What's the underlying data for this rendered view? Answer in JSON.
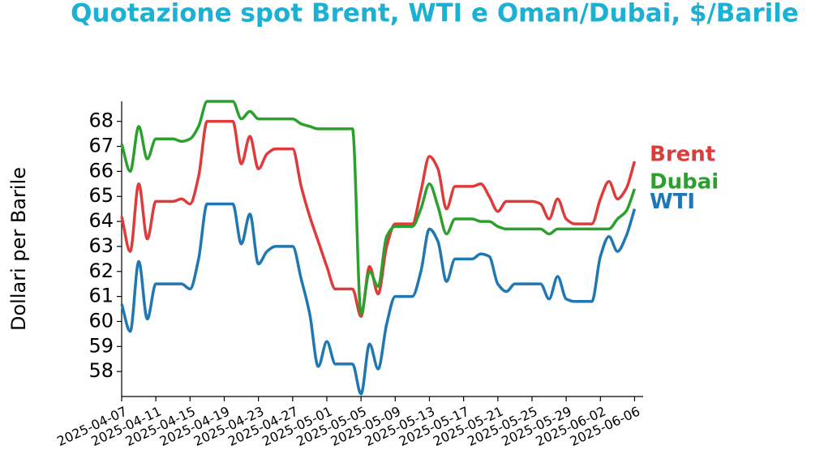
{
  "chart_data": {
    "type": "line",
    "title": "Quotazione spot Brent, WTI e Oman/Dubai, $/Barile",
    "y_label": "Dollari per Barile",
    "x": [
      "2025-04-07",
      "2025-04-08",
      "2025-04-09",
      "2025-04-10",
      "2025-04-11",
      "2025-04-12",
      "2025-04-13",
      "2025-04-14",
      "2025-04-15",
      "2025-04-16",
      "2025-04-17",
      "2025-04-18",
      "2025-04-19",
      "2025-04-20",
      "2025-04-21",
      "2025-04-22",
      "2025-04-23",
      "2025-04-24",
      "2025-04-25",
      "2025-04-26",
      "2025-04-27",
      "2025-04-28",
      "2025-04-29",
      "2025-04-30",
      "2025-05-01",
      "2025-05-02",
      "2025-05-03",
      "2025-05-04",
      "2025-05-05",
      "2025-05-06",
      "2025-05-07",
      "2025-05-08",
      "2025-05-09",
      "2025-05-10",
      "2025-05-11",
      "2025-05-12",
      "2025-05-13",
      "2025-05-14",
      "2025-05-15",
      "2025-05-16",
      "2025-05-17",
      "2025-05-18",
      "2025-05-19",
      "2025-05-20",
      "2025-05-21",
      "2025-05-22",
      "2025-05-23",
      "2025-05-24",
      "2025-05-25",
      "2025-05-26",
      "2025-05-27",
      "2025-05-28",
      "2025-05-29",
      "2025-05-30",
      "2025-05-31",
      "2025-06-01",
      "2025-06-02",
      "2025-06-03",
      "2025-06-04",
      "2025-06-05",
      "2025-06-06"
    ],
    "series": [
      {
        "name": "Brent",
        "color": "#e03b3b",
        "values": [
          64.2,
          62.8,
          65.5,
          63.3,
          64.8,
          64.8,
          64.8,
          64.9,
          64.7,
          65.8,
          68.0,
          68.0,
          68.0,
          68.0,
          66.3,
          67.4,
          66.1,
          66.7,
          66.9,
          66.9,
          66.9,
          65.4,
          64.2,
          63.2,
          62.2,
          61.3,
          61.3,
          61.3,
          60.2,
          62.2,
          61.1,
          63.0,
          63.9,
          63.9,
          63.9,
          65.2,
          66.6,
          66.1,
          64.5,
          65.4,
          65.4,
          65.4,
          65.5,
          65.0,
          64.4,
          64.8,
          64.8,
          64.8,
          64.8,
          64.7,
          64.1,
          64.9,
          64.1,
          63.9,
          63.9,
          63.9,
          64.9,
          65.6,
          64.9,
          65.3,
          66.4
        ]
      },
      {
        "name": "Dubai",
        "color": "#2ca02c",
        "values": [
          67.1,
          66.0,
          67.8,
          66.5,
          67.3,
          67.3,
          67.3,
          67.2,
          67.3,
          67.8,
          68.8,
          68.8,
          68.8,
          68.8,
          68.1,
          68.4,
          68.1,
          68.1,
          68.1,
          68.1,
          68.1,
          67.9,
          67.8,
          67.7,
          67.7,
          67.7,
          67.7,
          67.7,
          60.3,
          62.0,
          61.4,
          63.4,
          63.8,
          63.8,
          63.8,
          64.5,
          65.5,
          64.6,
          63.5,
          64.1,
          64.1,
          64.1,
          64.0,
          64.0,
          63.8,
          63.7,
          63.7,
          63.7,
          63.7,
          63.7,
          63.5,
          63.7,
          63.7,
          63.7,
          63.7,
          63.7,
          63.7,
          63.7,
          64.1,
          64.4,
          65.3
        ]
      },
      {
        "name": "WTI",
        "color": "#1f77b4",
        "values": [
          60.7,
          59.6,
          62.4,
          60.1,
          61.5,
          61.5,
          61.5,
          61.5,
          61.3,
          62.5,
          64.7,
          64.7,
          64.7,
          64.7,
          63.1,
          64.3,
          62.3,
          62.8,
          63.0,
          63.0,
          63.0,
          61.7,
          60.3,
          58.2,
          59.2,
          58.3,
          58.3,
          58.3,
          57.1,
          59.1,
          58.1,
          59.9,
          61.0,
          61.0,
          61.0,
          62.0,
          63.7,
          63.2,
          61.6,
          62.5,
          62.5,
          62.5,
          62.7,
          62.6,
          61.5,
          61.2,
          61.5,
          61.5,
          61.5,
          61.5,
          60.9,
          61.8,
          60.9,
          60.8,
          60.8,
          60.8,
          62.6,
          63.4,
          62.8,
          63.4,
          64.5
        ]
      }
    ],
    "xlim": [
      "2025-04-07",
      "2025-06-07"
    ],
    "xticks": [
      "2025-04-07",
      "2025-04-11",
      "2025-04-15",
      "2025-04-19",
      "2025-04-23",
      "2025-04-27",
      "2025-05-01",
      "2025-05-05",
      "2025-05-09",
      "2025-05-13",
      "2025-05-17",
      "2025-05-21",
      "2025-05-25",
      "2025-05-29",
      "2025-06-02",
      "2025-06-06"
    ],
    "ylim": [
      57,
      68.8
    ],
    "yticks": [
      58,
      59,
      60,
      61,
      62,
      63,
      64,
      65,
      66,
      67,
      68
    ]
  }
}
